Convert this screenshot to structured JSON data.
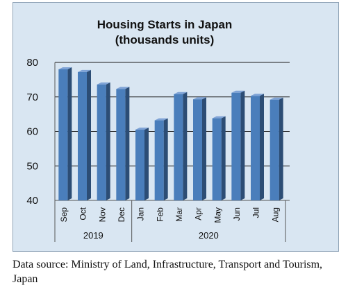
{
  "chart_data": {
    "type": "bar",
    "title_lines": [
      "Housing Starts in Japan",
      "(thousands units)"
    ],
    "categories": [
      "Sep",
      "Oct",
      "Nov",
      "Dec",
      "Jan",
      "Feb",
      "Mar",
      "Apr",
      "May",
      "Jun",
      "Jul",
      "Aug"
    ],
    "groups": [
      {
        "label": "2019",
        "start": 0,
        "end": 3
      },
      {
        "label": "2020",
        "start": 4,
        "end": 11
      }
    ],
    "values": [
      78.0,
      77.2,
      73.6,
      72.3,
      60.5,
      63.2,
      70.8,
      69.3,
      63.8,
      71.2,
      70.3,
      69.2
    ],
    "ylim": [
      40,
      80
    ],
    "yticks": [
      40,
      50,
      60,
      70,
      80
    ],
    "grid": true,
    "legend": "none",
    "colors": {
      "bar_front": "#4a7ebb",
      "bar_side": "#2c4d75",
      "bar_top": "#7fa3d6",
      "background": "#d9e6f2",
      "grid": "#1a1a1a"
    }
  },
  "caption": "Data source: Ministry of Land, Infrastructure, Transport and Tourism, Japan"
}
